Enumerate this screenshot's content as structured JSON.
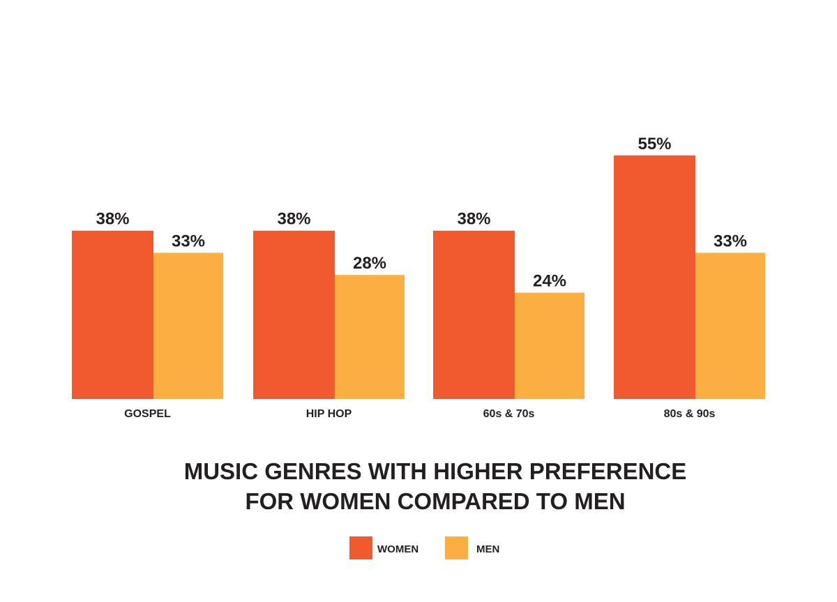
{
  "chart_data": {
    "type": "bar",
    "title_lines": [
      "MUSIC GENRES WITH HIGHER PREFERENCE",
      "FOR WOMEN COMPARED TO MEN"
    ],
    "categories": [
      "GOSPEL",
      "HIP HOP",
      "60s & 70s",
      "80s & 90s"
    ],
    "series": [
      {
        "name": "WOMEN",
        "color": "#F15A2E",
        "values": [
          38,
          38,
          38,
          55
        ],
        "labels": [
          "38%",
          "38%",
          "38%",
          "55%"
        ]
      },
      {
        "name": "MEN",
        "color": "#FAAF40",
        "values": [
          33,
          28,
          24,
          33
        ],
        "labels": [
          "33%",
          "28%",
          "24%",
          "33%"
        ]
      }
    ],
    "ylim": [
      0,
      55
    ],
    "xlabel": "",
    "ylabel": "",
    "grid": false,
    "legend_position": "bottom"
  }
}
